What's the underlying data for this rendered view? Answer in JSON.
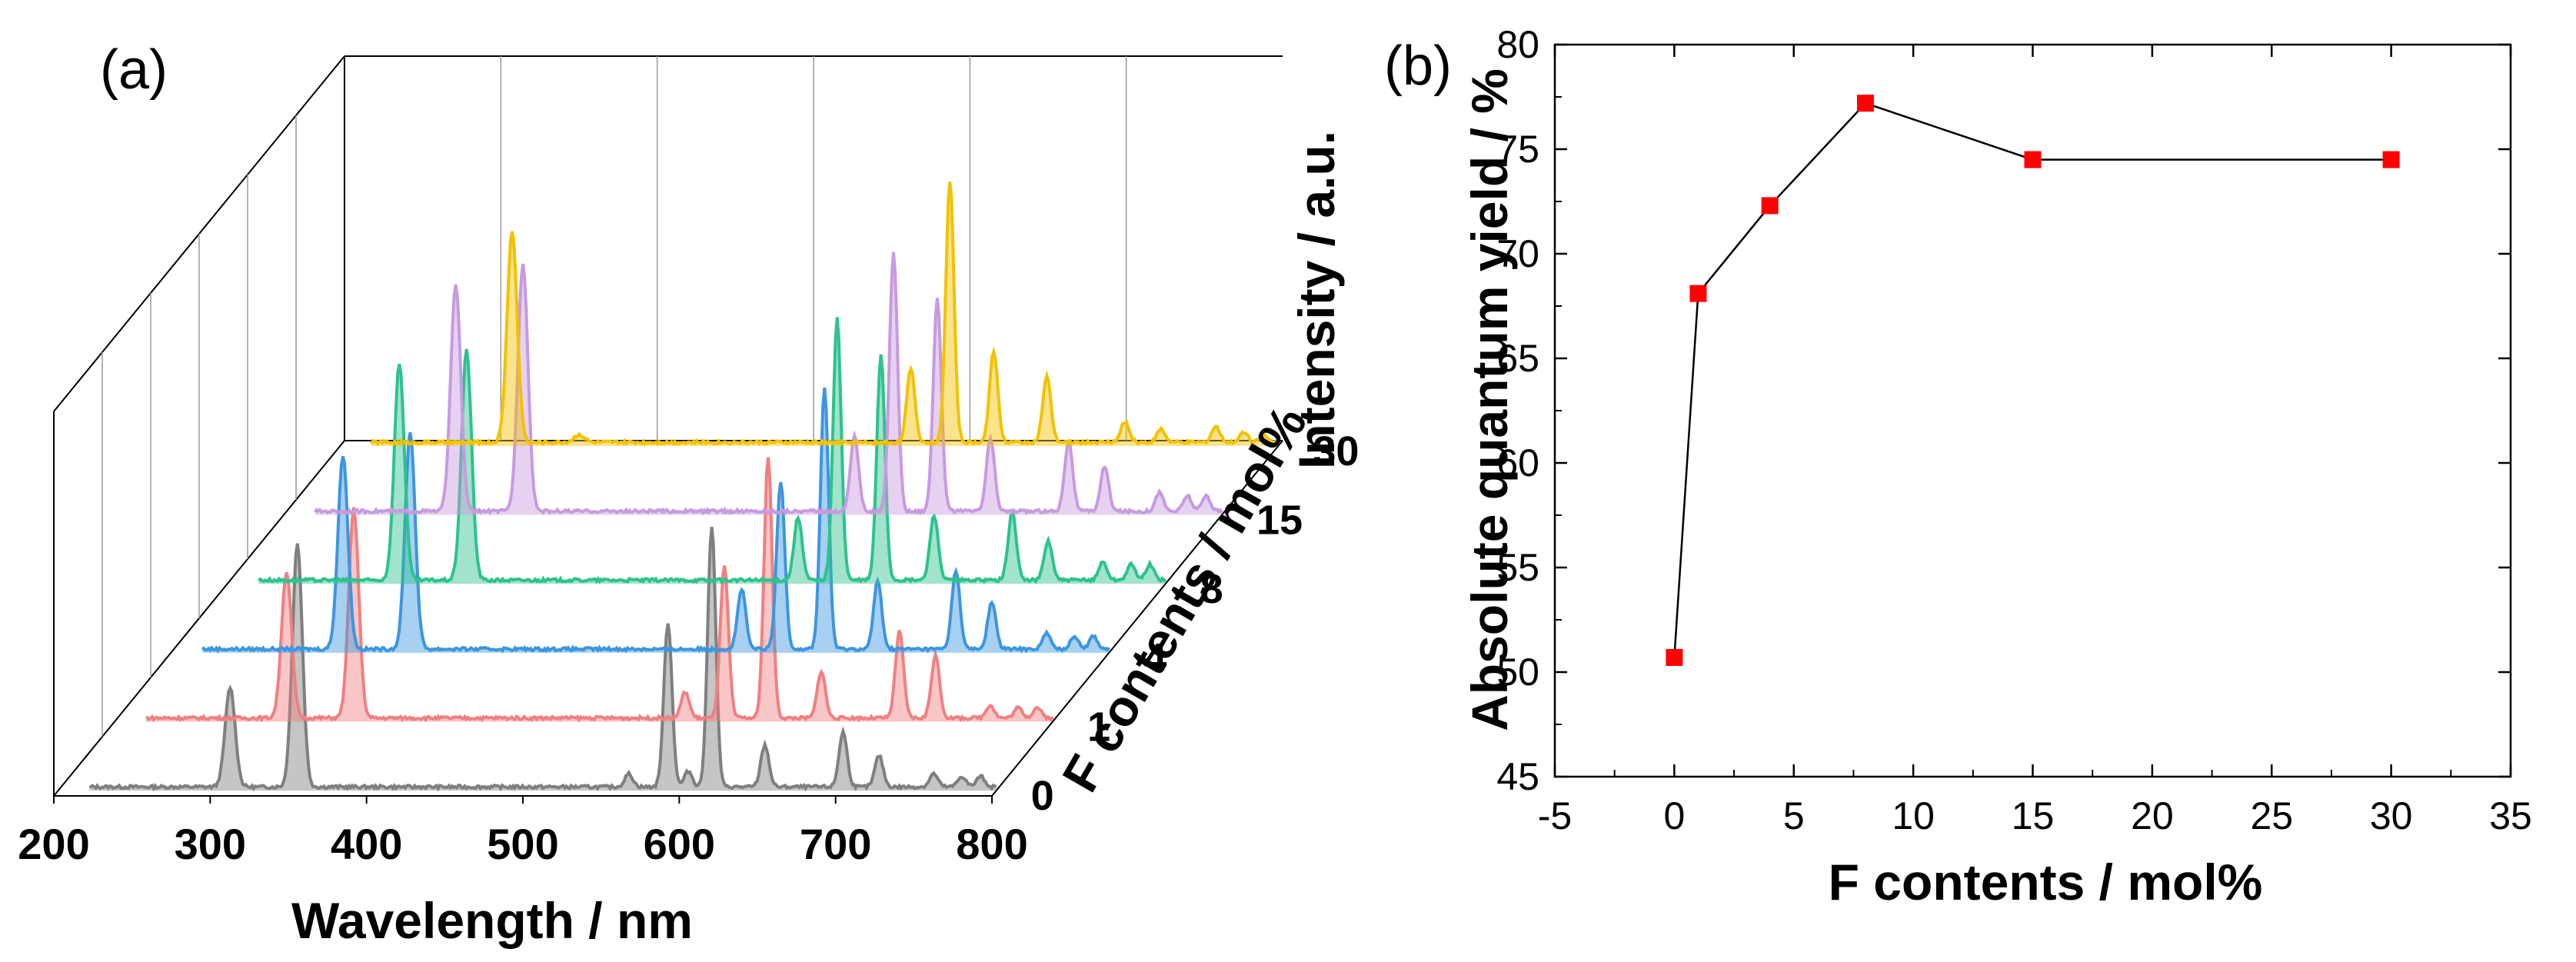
{
  "chart_data": [
    {
      "panel_label": "(a)",
      "type": "line",
      "chart_style": "3d-waterfall",
      "xlabel": "Wavelength / nm",
      "zlabel": "Intensity / a.u.",
      "ylabel": "F contents / mol%",
      "xlim": [
        200,
        800
      ],
      "xticks": [
        "200",
        "300",
        "400",
        "500",
        "600",
        "700",
        "800"
      ],
      "depth_ticks": [
        "0",
        "1",
        "4",
        "8",
        "15",
        "30"
      ],
      "series": [
        {
          "name": "0",
          "color": "#7f7f7f",
          "peaks": [
            [
              310,
              0.38
            ],
            [
              353,
              0.93
            ],
            [
              565,
              0.05
            ],
            [
              590,
              0.63
            ],
            [
              603,
              0.06
            ],
            [
              618,
              1.0
            ],
            [
              652,
              0.16
            ],
            [
              702,
              0.21
            ],
            [
              725,
              0.12
            ],
            [
              760,
              0.05
            ],
            [
              778,
              0.04
            ],
            [
              790,
              0.04
            ]
          ]
        },
        {
          "name": "1",
          "color": "#f08080",
          "peaks": [
            [
              310,
              0.56
            ],
            [
              353,
              0.8
            ],
            [
              565,
              0.1
            ],
            [
              590,
              0.58
            ],
            [
              618,
              1.0
            ],
            [
              652,
              0.18
            ],
            [
              702,
              0.33
            ],
            [
              725,
              0.24
            ],
            [
              760,
              0.05
            ],
            [
              778,
              0.04
            ],
            [
              790,
              0.04
            ]
          ]
        },
        {
          "name": "4",
          "color": "#3c96e0",
          "peaks": [
            [
              310,
              0.74
            ],
            [
              353,
              0.83
            ],
            [
              565,
              0.23
            ],
            [
              590,
              0.64
            ],
            [
              618,
              1.0
            ],
            [
              652,
              0.26
            ],
            [
              702,
              0.3
            ],
            [
              725,
              0.18
            ],
            [
              760,
              0.06
            ],
            [
              778,
              0.05
            ],
            [
              790,
              0.05
            ]
          ]
        },
        {
          "name": "8",
          "color": "#2ec28c",
          "peaks": [
            [
              310,
              0.83
            ],
            [
              353,
              0.88
            ],
            [
              565,
              0.24
            ],
            [
              590,
              1.0
            ],
            [
              618,
              0.86
            ],
            [
              652,
              0.25
            ],
            [
              702,
              0.26
            ],
            [
              725,
              0.15
            ],
            [
              760,
              0.07
            ],
            [
              778,
              0.06
            ],
            [
              790,
              0.06
            ]
          ]
        },
        {
          "name": "15",
          "color": "#c89ae0",
          "peaks": [
            [
              310,
              0.87
            ],
            [
              353,
              0.95
            ],
            [
              565,
              0.29
            ],
            [
              590,
              0.99
            ],
            [
              618,
              0.81
            ],
            [
              652,
              0.28
            ],
            [
              702,
              0.27
            ],
            [
              725,
              0.17
            ],
            [
              760,
              0.07
            ],
            [
              778,
              0.06
            ],
            [
              790,
              0.06
            ]
          ]
        },
        {
          "name": "30",
          "color": "#f2c200",
          "peaks": [
            [
              310,
              0.81
            ],
            [
              353,
              0.03
            ],
            [
              565,
              0.28
            ],
            [
              590,
              1.0
            ],
            [
              618,
              0.35
            ],
            [
              652,
              0.25
            ],
            [
              702,
              0.08
            ],
            [
              725,
              0.05
            ],
            [
              760,
              0.06
            ],
            [
              778,
              0.04
            ],
            [
              790,
              0.03
            ]
          ]
        }
      ]
    },
    {
      "panel_label": "(b)",
      "type": "line",
      "markers": "square",
      "xlabel": "F contents / mol%",
      "ylabel": "Absolute quantum yield / %",
      "xlim": [
        -5,
        35
      ],
      "ylim": [
        45,
        80
      ],
      "xticks": [
        "-5",
        "0",
        "5",
        "10",
        "15",
        "20",
        "25",
        "30",
        "35"
      ],
      "yticks": [
        "45",
        "50",
        "55",
        "60",
        "65",
        "70",
        "75",
        "80"
      ],
      "x": [
        0,
        1,
        4,
        8,
        15,
        30
      ],
      "y": [
        50.7,
        68.1,
        72.3,
        77.2,
        74.5,
        74.5
      ],
      "line_color": "#000000",
      "marker_color": "#ff0000"
    }
  ]
}
